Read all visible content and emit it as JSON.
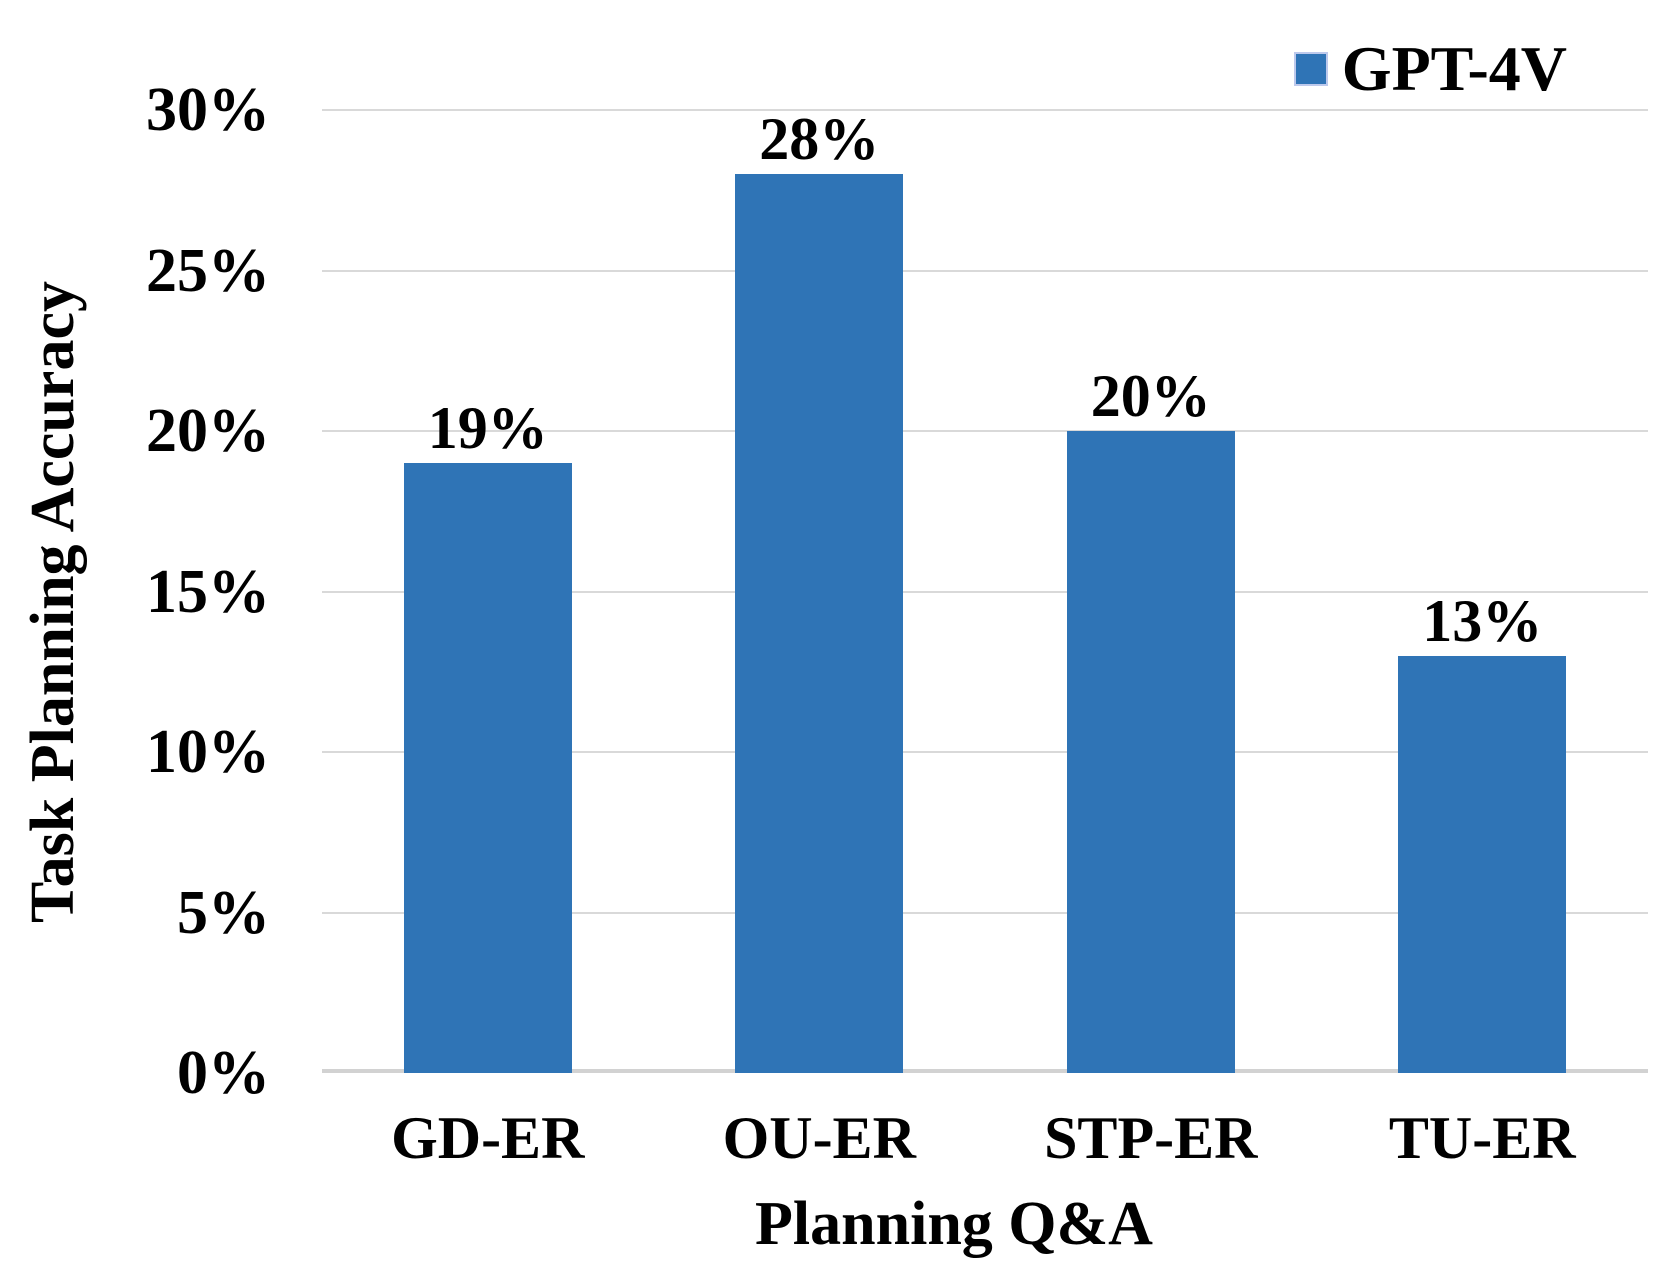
{
  "chart_data": {
    "type": "bar",
    "categories": [
      "GD-ER",
      "OU-ER",
      "STP-ER",
      "TU-ER"
    ],
    "series": [
      {
        "name": "GPT-4V",
        "values": [
          19,
          28,
          20,
          13
        ]
      }
    ],
    "data_labels": [
      "19%",
      "28%",
      "20%",
      "13%"
    ],
    "xlabel": "Planning Q&A",
    "ylabel": "Task Planning Accuracy",
    "ylim": [
      0,
      30
    ],
    "ytick_step": 5,
    "ytick_labels": [
      "0%",
      "5%",
      "10%",
      "15%",
      "20%",
      "25%",
      "30%"
    ],
    "grid": "horizontal-only",
    "legend_position": "top-right",
    "colors": {
      "bar": "#2F74B6",
      "gridline": "#D9D9D9",
      "axis_line": "#D2D2D2",
      "text": "#000000",
      "legend_swatch_border": "#BDC9EC"
    }
  }
}
